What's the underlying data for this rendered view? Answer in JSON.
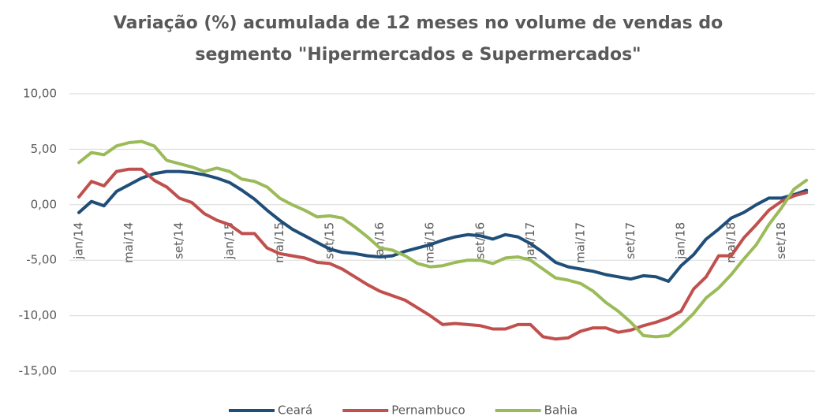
{
  "chart_data": {
    "type": "line",
    "title": [
      "Variação (%) acumulada de 12 meses no volume de vendas do",
      "segmento \"Hipermercados e Supermercados\""
    ],
    "categories": [
      "jan/14",
      null,
      null,
      null,
      "mai/14",
      null,
      null,
      null,
      "set/14",
      null,
      null,
      null,
      "jan/15",
      null,
      null,
      null,
      "mai/15",
      null,
      null,
      null,
      "set/15",
      null,
      null,
      null,
      "jan/16",
      null,
      null,
      null,
      "mai/16",
      null,
      null,
      null,
      "set/16",
      null,
      null,
      null,
      "jan/17",
      null,
      null,
      null,
      "mai/17",
      null,
      null,
      null,
      "set/17",
      null,
      null,
      null,
      "jan/18",
      null,
      null,
      null,
      "mai/18",
      null,
      null,
      null,
      "set/18",
      null,
      null
    ],
    "series": [
      {
        "name": "Ceará",
        "color": "#1f4e79",
        "values": [
          -0.7,
          0.3,
          -0.1,
          1.2,
          1.8,
          2.4,
          2.8,
          3.0,
          3.0,
          2.9,
          2.7,
          2.4,
          2.0,
          1.3,
          0.5,
          -0.5,
          -1.4,
          -2.2,
          -2.8,
          -3.4,
          -4.0,
          -4.3,
          -4.4,
          -4.6,
          -4.7,
          -4.6,
          -4.2,
          -3.9,
          -3.6,
          -3.2,
          -2.9,
          -2.7,
          -2.8,
          -3.1,
          -2.7,
          -2.9,
          -3.5,
          -4.3,
          -5.2,
          -5.6,
          -5.8,
          -6.0,
          -6.3,
          -6.5,
          -6.7,
          -6.4,
          -6.5,
          -6.9,
          -5.5,
          -4.5,
          -3.1,
          -2.2,
          -1.2,
          -0.7,
          0.0,
          0.6,
          0.6,
          0.9,
          1.3
        ]
      },
      {
        "name": "Pernambuco",
        "color": "#c0504d",
        "values": [
          0.7,
          2.1,
          1.7,
          3.0,
          3.2,
          3.2,
          2.2,
          1.6,
          0.6,
          0.2,
          -0.8,
          -1.4,
          -1.8,
          -2.6,
          -2.6,
          -3.9,
          -4.4,
          -4.6,
          -4.8,
          -5.2,
          -5.3,
          -5.8,
          -6.5,
          -7.2,
          -7.8,
          -8.2,
          -8.6,
          -9.3,
          -10.0,
          -10.8,
          -10.7,
          -10.8,
          -10.9,
          -11.2,
          -11.2,
          -10.8,
          -10.8,
          -11.9,
          -12.1,
          -12.0,
          -11.4,
          -11.1,
          -11.1,
          -11.5,
          -11.3,
          -10.9,
          -10.6,
          -10.2,
          -9.6,
          -7.6,
          -6.5,
          -4.6,
          -4.6,
          -3.0,
          -1.8,
          -0.5,
          0.3,
          0.8,
          1.1
        ]
      },
      {
        "name": "Bahia",
        "color": "#9bbb59",
        "values": [
          3.8,
          4.7,
          4.5,
          5.3,
          5.6,
          5.7,
          5.3,
          4.0,
          3.7,
          3.4,
          3.0,
          3.3,
          3.0,
          2.3,
          2.1,
          1.6,
          0.6,
          0.0,
          -0.5,
          -1.1,
          -1.0,
          -1.2,
          -2.0,
          -2.9,
          -3.9,
          -4.1,
          -4.6,
          -5.3,
          -5.6,
          -5.5,
          -5.2,
          -5.0,
          -5.0,
          -5.3,
          -4.8,
          -4.7,
          -5.0,
          -5.8,
          -6.6,
          -6.8,
          -7.1,
          -7.8,
          -8.8,
          -9.6,
          -10.6,
          -11.8,
          -11.9,
          -11.8,
          -10.9,
          -9.8,
          -8.4,
          -7.5,
          -6.3,
          -4.9,
          -3.6,
          -1.8,
          -0.3,
          1.4,
          2.2
        ]
      }
    ],
    "ylim": [
      -15,
      10
    ],
    "yticks": [
      {
        "value": -15,
        "label": "-15,00"
      },
      {
        "value": -10,
        "label": "-10,00"
      },
      {
        "value": -5,
        "label": "-5,00"
      },
      {
        "value": 0,
        "label": "0,00"
      },
      {
        "value": 5,
        "label": "5,00"
      },
      {
        "value": 10,
        "label": "10,00"
      }
    ],
    "grid": true,
    "legend": "bottom"
  }
}
